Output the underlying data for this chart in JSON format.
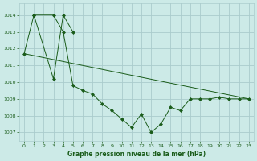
{
  "title": "Graphe pression niveau de la mer (hPa)",
  "background_color": "#cceae7",
  "grid_color": "#aacccc",
  "line_color": "#1a5c1a",
  "xlim": [
    -0.5,
    23.5
  ],
  "ylim": [
    1006.5,
    1014.7
  ],
  "yticks": [
    1007,
    1008,
    1009,
    1010,
    1011,
    1012,
    1013,
    1014
  ],
  "xticks": [
    0,
    1,
    2,
    3,
    4,
    5,
    6,
    7,
    8,
    9,
    10,
    11,
    12,
    13,
    14,
    15,
    16,
    17,
    18,
    19,
    20,
    21,
    22,
    23
  ],
  "series_jagged": {
    "x": [
      0,
      1,
      3,
      4,
      5,
      6,
      7,
      8,
      9,
      10,
      11,
      12,
      13,
      14,
      15,
      16,
      17,
      18,
      19,
      20,
      21,
      22,
      23
    ],
    "y": [
      1011.7,
      1014.0,
      1014.0,
      1013.0,
      1009.8,
      1009.5,
      1009.3,
      1008.7,
      1008.3,
      1007.8,
      1007.3,
      1008.1,
      1007.0,
      1007.5,
      1008.5,
      1008.3,
      1009.0,
      1009.0,
      1009.0,
      1009.1,
      1009.0,
      1009.0,
      1009.0
    ]
  },
  "series_diagonal": {
    "x": [
      0,
      23
    ],
    "y": [
      1011.7,
      1009.0
    ]
  },
  "series_upper": {
    "x": [
      1,
      3,
      4,
      5
    ],
    "y": [
      1014.0,
      1010.2,
      1014.0,
      1013.0
    ]
  }
}
